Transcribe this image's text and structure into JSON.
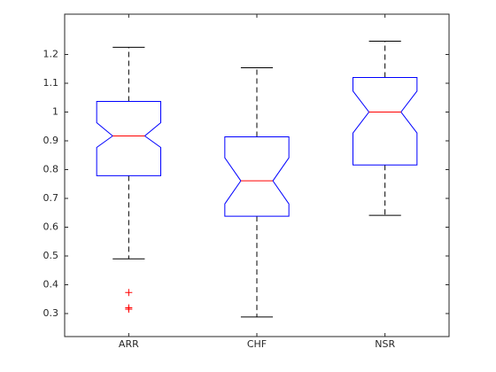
{
  "chart_data": {
    "type": "boxplot",
    "notched": true,
    "categories": [
      "ARR",
      "CHF",
      "NSR"
    ],
    "boxes": [
      {
        "whisker_high": 1.225,
        "q3": 1.037,
        "notch_high": 0.963,
        "median": 0.917,
        "notch_low": 0.877,
        "q1": 0.779,
        "whisker_low": 0.49,
        "outliers": [
          0.373,
          0.32,
          0.315
        ]
      },
      {
        "whisker_high": 1.154,
        "q3": 0.914,
        "notch_high": 0.841,
        "median": 0.761,
        "notch_low": 0.681,
        "q1": 0.638,
        "whisker_low": 0.288,
        "outliers": []
      },
      {
        "whisker_high": 1.246,
        "q3": 1.12,
        "notch_high": 1.073,
        "median": 1.0,
        "notch_low": 0.927,
        "q1": 0.816,
        "whisker_low": 0.641,
        "outliers": []
      }
    ],
    "box_color": "#0000ff",
    "median_color": "#ff0000",
    "whisker_color": "#000000",
    "outlier_color": "#ff0000",
    "xlim": [
      0.5,
      3.5
    ],
    "ylim": [
      0.22,
      1.34
    ],
    "yticks": [
      0.3,
      0.4,
      0.5,
      0.6,
      0.7,
      0.8,
      0.9,
      1,
      1.1,
      1.2
    ]
  }
}
